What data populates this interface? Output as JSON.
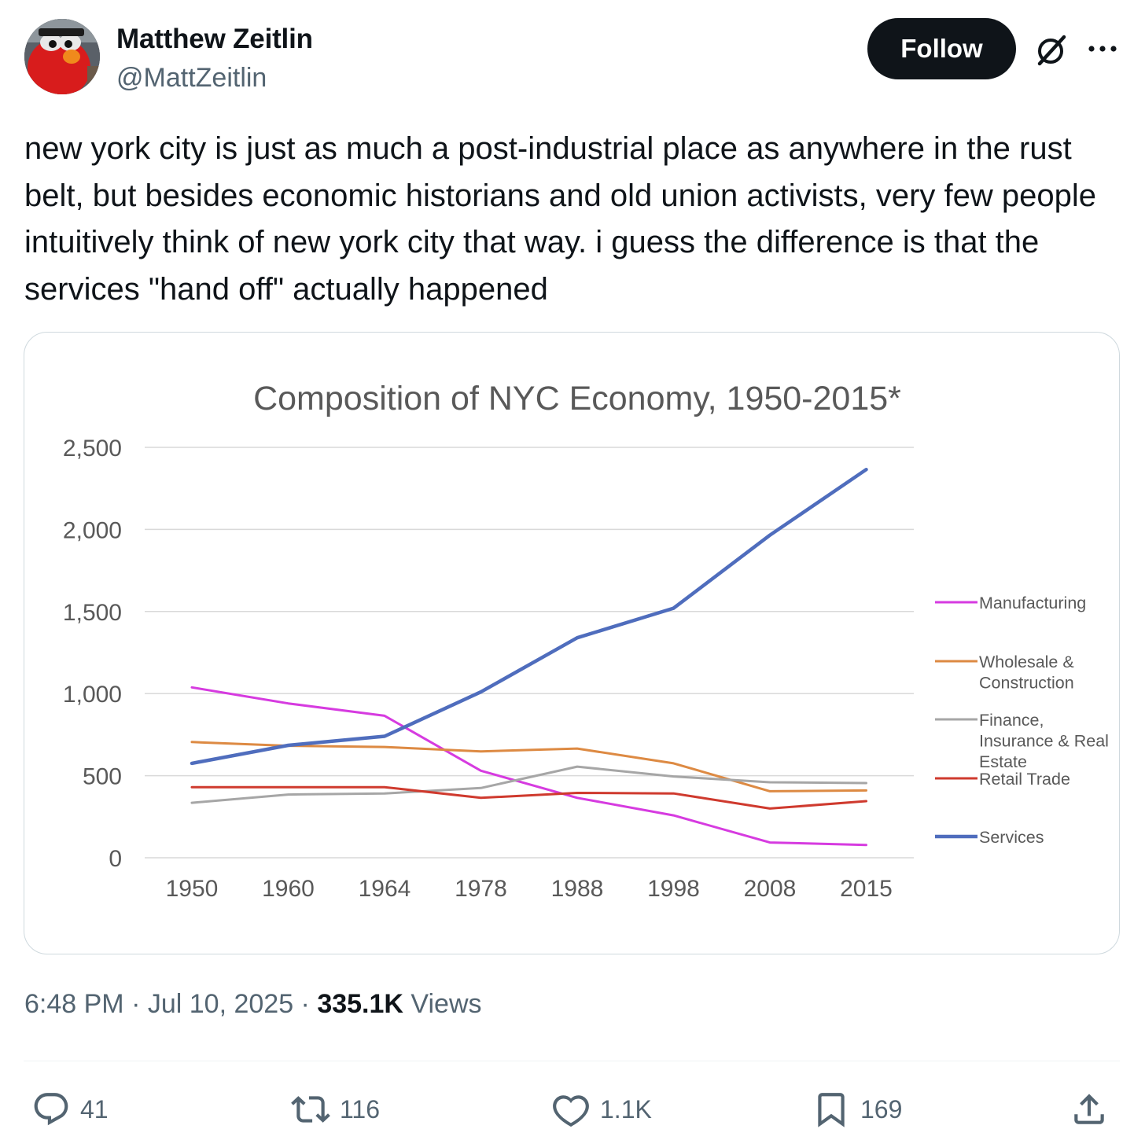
{
  "author": {
    "name": "Matthew Zeitlin",
    "handle": "@MattZeitlin"
  },
  "header": {
    "follow_label": "Follow"
  },
  "icons": {
    "grok": "grok-icon",
    "more": "more-icon",
    "reply": "reply-icon",
    "retweet": "retweet-icon",
    "like": "heart-icon",
    "bookmark": "bookmark-icon",
    "share": "share-icon"
  },
  "tweet": {
    "text": "new york city is just as much a post-industrial place as anywhere in the rust belt, but besides economic historians and old union activists, very few people intuitively think of new york city that way. i guess the difference is that the services \"hand off\" actually happened"
  },
  "meta": {
    "time": "6:48 PM",
    "sep1": " · ",
    "date": "Jul 10, 2025",
    "sep2": " · ",
    "views_count": "335.1K",
    "views_label": " Views"
  },
  "actions": {
    "replies": "41",
    "retweets": "116",
    "likes": "1.1K",
    "bookmarks": "169"
  },
  "chart_data": {
    "type": "line",
    "title": "Composition of NYC Economy, 1950-2015*",
    "categories": [
      "1950",
      "1960",
      "1964",
      "1978",
      "1988",
      "1998",
      "2008",
      "2015"
    ],
    "yticks": [
      "0",
      "500",
      "1,000",
      "1,500",
      "2,000",
      "2,500"
    ],
    "ylim": [
      0,
      2500
    ],
    "grid": true,
    "legend_position": "right",
    "series": [
      {
        "name": "Manufacturing",
        "color": "#d63be0",
        "values": [
          1038,
          940,
          865,
          530,
          365,
          258,
          93,
          78
        ]
      },
      {
        "name": "Wholesale & Construction",
        "legend_lines": [
          "Wholesale &",
          "Construction"
        ],
        "color": "#dd8a43",
        "values": [
          705,
          682,
          675,
          648,
          665,
          575,
          405,
          410
        ]
      },
      {
        "name": "Finance, Insurance & Real Estate",
        "legend_lines": [
          "Finance,",
          "Insurance & Real",
          "Estate"
        ],
        "color": "#a6a6a6",
        "values": [
          335,
          385,
          392,
          425,
          555,
          495,
          460,
          455
        ]
      },
      {
        "name": "Retail Trade",
        "color": "#cf3a2e",
        "values": [
          430,
          430,
          430,
          365,
          395,
          392,
          300,
          345
        ]
      },
      {
        "name": "Services",
        "color": "#4f6dbd",
        "values": [
          575,
          685,
          740,
          1010,
          1340,
          1520,
          1965,
          2365
        ]
      }
    ]
  }
}
